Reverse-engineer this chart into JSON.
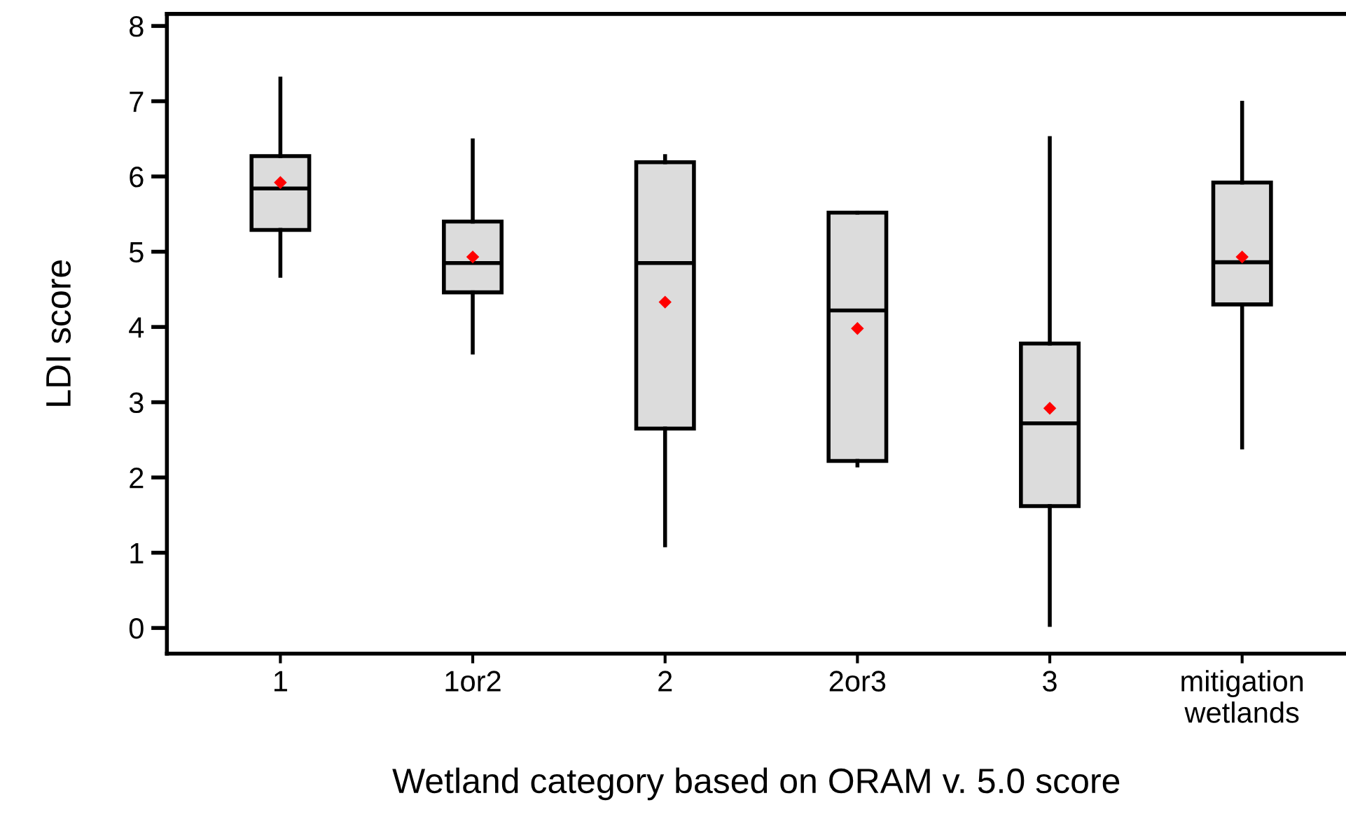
{
  "chart_data": {
    "type": "box",
    "xlabel": "Wetland category based on ORAM v. 5.0 score",
    "ylabel": "LDI score",
    "categories": [
      "1",
      "1or2",
      "2",
      "2or3",
      "3",
      "mitigation\nwetlands"
    ],
    "boxes": [
      {
        "low": 4.68,
        "q1": 5.29,
        "median": 5.84,
        "q3": 6.27,
        "high": 7.3,
        "mean": 5.92
      },
      {
        "low": 3.66,
        "q1": 4.46,
        "median": 4.85,
        "q3": 5.4,
        "high": 6.48,
        "mean": 4.93
      },
      {
        "low": 1.1,
        "q1": 2.65,
        "median": 4.85,
        "q3": 6.19,
        "high": 6.27,
        "mean": 4.33
      },
      {
        "low": 2.16,
        "q1": 2.22,
        "median": 4.22,
        "q3": 5.52,
        "high": 5.52,
        "mean": 3.98
      },
      {
        "low": 0.04,
        "q1": 1.62,
        "median": 2.72,
        "q3": 3.78,
        "high": 6.51,
        "mean": 2.92
      },
      {
        "low": 2.4,
        "q1": 4.3,
        "median": 4.86,
        "q3": 5.92,
        "high": 6.98,
        "mean": 4.93
      }
    ],
    "color": "#dcdcdc",
    "marker": "diamond",
    "ylim": [
      -0.34,
      8.16
    ],
    "yticks": [
      0,
      1,
      2,
      3,
      4,
      5,
      6,
      7,
      8
    ],
    "grid": false,
    "legend": false
  }
}
